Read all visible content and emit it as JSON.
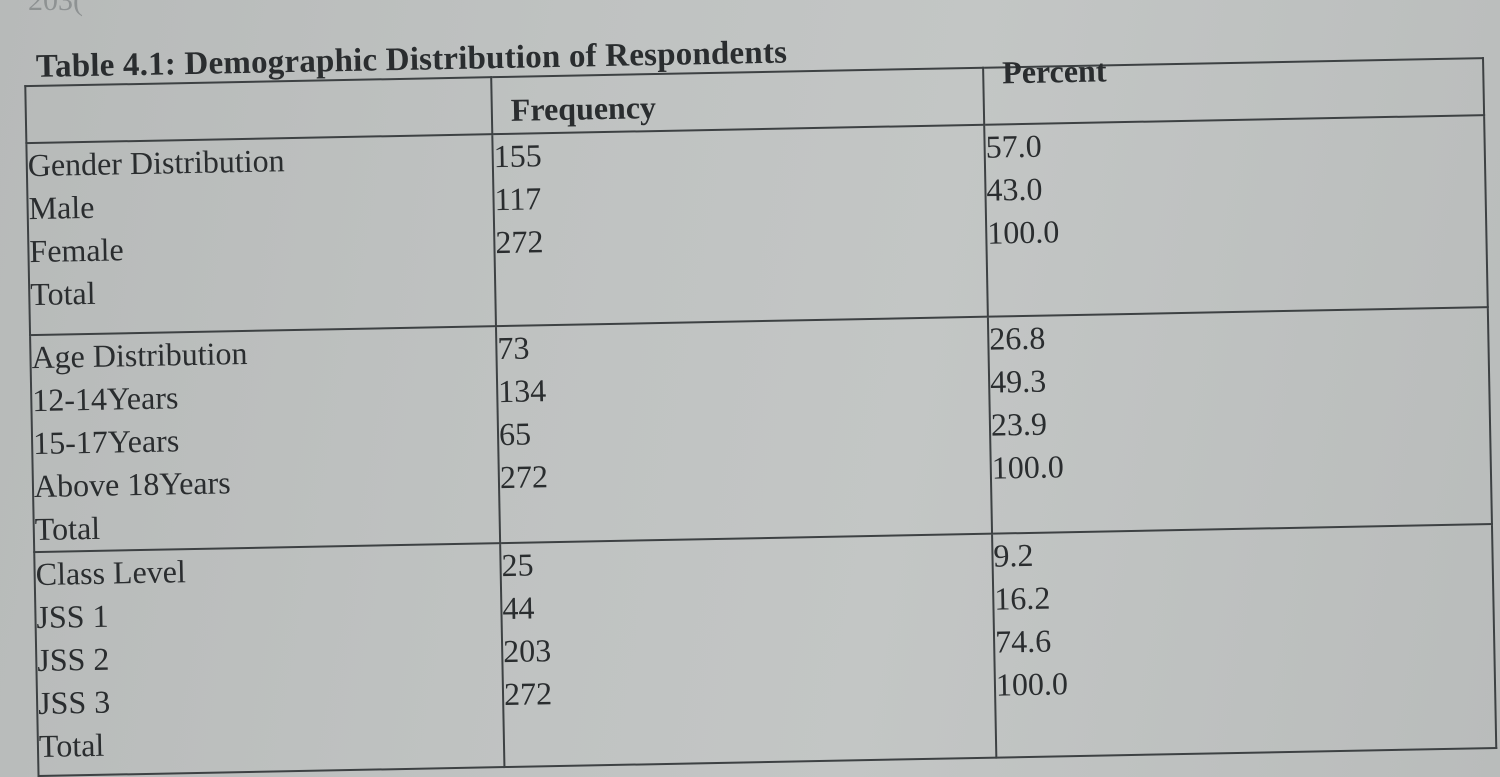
{
  "top_fragment": "203(",
  "table": {
    "caption": "Table 4.1: Demographic Distribution of Respondents",
    "columns": {
      "frequency": "Frequency",
      "percent": "Percent"
    },
    "groups": [
      {
        "heading": "Gender Distribution",
        "rows": [
          {
            "label": "Male",
            "frequency": "155",
            "percent": "57.0"
          },
          {
            "label": "Female",
            "frequency": "117",
            "percent": "43.0"
          },
          {
            "label": "Total",
            "frequency": "272",
            "percent": "100.0"
          }
        ]
      },
      {
        "heading": "Age Distribution",
        "rows": [
          {
            "label": "12-14Years",
            "frequency": "73",
            "percent": "26.8"
          },
          {
            "label": "15-17Years",
            "frequency": "134",
            "percent": "49.3"
          },
          {
            "label": "Above 18Years",
            "frequency": "65",
            "percent": "23.9"
          },
          {
            "label": "Total",
            "frequency": "272",
            "percent": "100.0"
          }
        ]
      },
      {
        "heading": "Class Level",
        "rows": [
          {
            "label": "JSS 1",
            "frequency": "25",
            "percent": "9.2"
          },
          {
            "label": "JSS 2",
            "frequency": "44",
            "percent": "16.2"
          },
          {
            "label": "JSS 3",
            "frequency": "203",
            "percent": "74.6"
          },
          {
            "label": "Total",
            "frequency": "272",
            "percent": "100.0"
          }
        ]
      }
    ]
  }
}
